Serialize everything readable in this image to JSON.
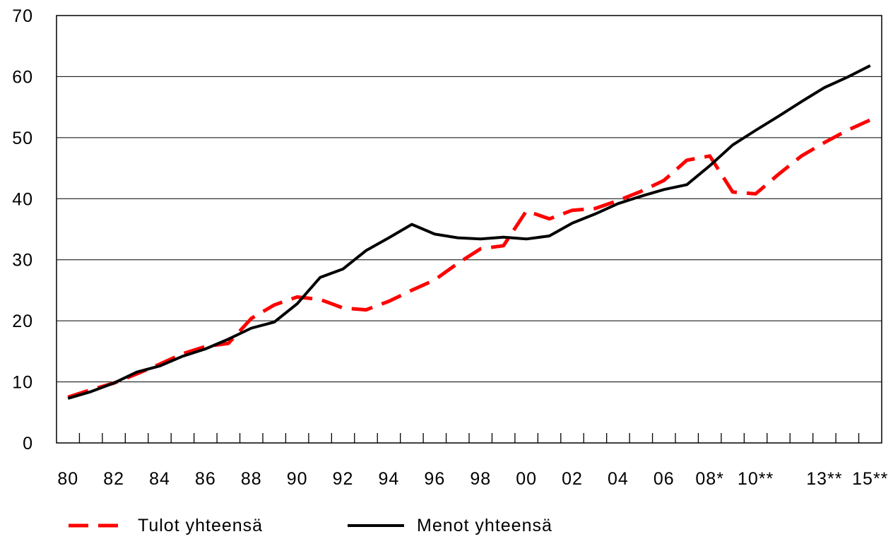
{
  "chart_data": {
    "type": "line",
    "x": [
      "80",
      "81",
      "82",
      "83",
      "84",
      "85",
      "86",
      "87",
      "88",
      "89",
      "90",
      "91",
      "92",
      "93",
      "94",
      "95",
      "96",
      "97",
      "98",
      "99",
      "00",
      "01",
      "02",
      "03",
      "04",
      "05",
      "06",
      "07",
      "08*",
      "09*",
      "10**",
      "11**",
      "12**",
      "13**",
      "14**",
      "15**"
    ],
    "x_tick_labels": [
      "80",
      "82",
      "84",
      "86",
      "88",
      "90",
      "92",
      "94",
      "96",
      "98",
      "00",
      "02",
      "04",
      "06",
      "08*",
      "10**",
      "13**",
      "15**"
    ],
    "y_ticks": [
      0,
      10,
      20,
      30,
      40,
      50,
      60,
      70
    ],
    "ylim": [
      0,
      70
    ],
    "grid": true,
    "legend_position": "bottom",
    "series": [
      {
        "name": "Tulot yhteensä",
        "color": "#ff0000",
        "style": "dashed",
        "values": [
          7.5,
          8.7,
          9.8,
          11.3,
          12.9,
          14.6,
          15.8,
          16.3,
          20.4,
          22.6,
          23.9,
          23.5,
          22.1,
          21.8,
          23.2,
          25.0,
          26.7,
          29.4,
          31.8,
          32.3,
          38.0,
          36.7,
          38.1,
          38.4,
          39.7,
          41.2,
          43.0,
          46.3,
          47.0,
          41.1,
          40.8,
          44.0,
          47.0,
          49.2,
          51.2,
          52.9
        ]
      },
      {
        "name": "Menot yhteensä",
        "color": "#000000",
        "style": "solid",
        "values": [
          7.3,
          8.4,
          9.8,
          11.6,
          12.6,
          14.2,
          15.4,
          17.0,
          18.8,
          19.8,
          22.8,
          27.1,
          28.5,
          31.5,
          33.6,
          35.8,
          34.2,
          33.6,
          33.4,
          33.7,
          33.4,
          33.9,
          36.0,
          37.5,
          39.2,
          40.4,
          41.5,
          42.3,
          45.4,
          48.8,
          51.2,
          53.5,
          55.9,
          58.2,
          59.9,
          61.8
        ]
      }
    ]
  }
}
